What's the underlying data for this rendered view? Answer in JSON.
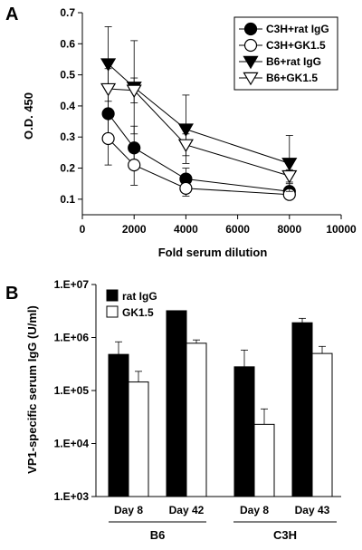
{
  "chart_data": [
    {
      "panel": "A",
      "type": "line",
      "xlabel": "Fold serum dilution",
      "ylabel": "O.D. 450",
      "xlim": [
        0,
        10000
      ],
      "ylim": [
        0.05,
        0.7
      ],
      "xticks": [
        0,
        2000,
        4000,
        6000,
        8000,
        10000
      ],
      "xtick_labels": [
        "0",
        "2000",
        "4000",
        "6000",
        "8000",
        "10000"
      ],
      "yticks": [
        0.1,
        0.2,
        0.3,
        0.4,
        0.5,
        0.6,
        0.7
      ],
      "ytick_labels": [
        "0.1",
        "0.2",
        "0.3",
        "0.4",
        "0.5",
        "0.6",
        "0.7"
      ],
      "x": [
        1000,
        2000,
        4000,
        8000
      ],
      "legend_position": "top-right",
      "series": [
        {
          "name": "C3H+rat IgG",
          "marker": "circle-filled",
          "values": [
            0.375,
            0.265,
            0.165,
            0.125
          ],
          "errors": [
            0.095,
            0.07,
            0.035,
            0.025
          ]
        },
        {
          "name": "C3H+GK1.5",
          "marker": "circle-open",
          "values": [
            0.295,
            0.21,
            0.135,
            0.115
          ],
          "errors": [
            0.085,
            0.065,
            0.025,
            0.015
          ]
        },
        {
          "name": "B6+rat IgG",
          "marker": "triangle-down-filled",
          "values": [
            0.535,
            0.46,
            0.325,
            0.215
          ],
          "errors": [
            0.12,
            0.15,
            0.11,
            0.09
          ]
        },
        {
          "name": "B6+GK1.5",
          "marker": "triangle-down-open",
          "values": [
            0.455,
            0.45,
            0.275,
            0.175
          ],
          "errors": [
            0.065,
            0.04,
            0.035,
            0.02
          ]
        }
      ]
    },
    {
      "panel": "B",
      "type": "bar",
      "ylabel": "VP1-specific serum IgG (U/ml)",
      "yscale": "log",
      "ylim": [
        1000,
        10000000
      ],
      "yticks": [
        1000,
        10000,
        100000,
        1000000,
        10000000
      ],
      "ytick_labels": [
        "1.E+03",
        "1.E+04",
        "1.E+05",
        "1.E+06",
        "1.E+07"
      ],
      "categories": [
        "Day 8",
        "Day 42",
        "Day 8",
        "Day 43"
      ],
      "groups": [
        {
          "label": "B6",
          "categories": [
            "Day 8",
            "Day 42"
          ]
        },
        {
          "label": "C3H",
          "categories": [
            "Day 8",
            "Day 43"
          ]
        }
      ],
      "legend_position": "top-left",
      "series": [
        {
          "name": "rat IgG",
          "color": "#000000",
          "values": [
            480000,
            3200000,
            280000,
            1900000
          ],
          "error_upper": [
            830000,
            0,
            580000,
            2300000
          ]
        },
        {
          "name": "GK1.5",
          "color": "#ffffff",
          "values": [
            145000,
            780000,
            23000,
            500000
          ],
          "error_upper": [
            230000,
            900000,
            45000,
            680000
          ]
        }
      ]
    }
  ]
}
